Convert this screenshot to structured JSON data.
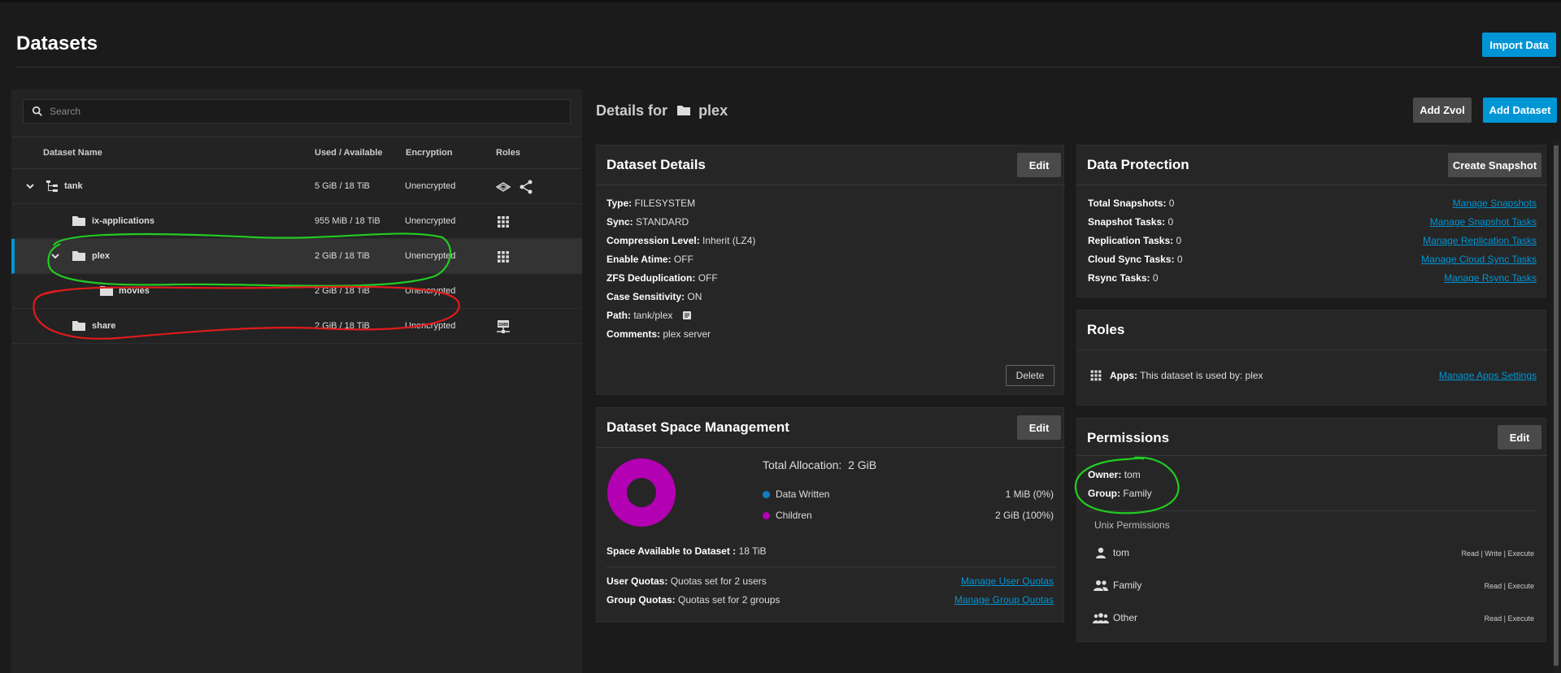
{
  "page": {
    "title": "Datasets",
    "import_label": "Import Data"
  },
  "search": {
    "placeholder": "Search"
  },
  "table": {
    "headers": [
      "Dataset Name",
      "Used / Available",
      "Encryption",
      "Roles"
    ],
    "rows": [
      {
        "name": "tank",
        "used": "5 GiB / 18 TiB",
        "encryption": "Unencrypted",
        "roles": [
          "share-icon",
          "network-share-icon"
        ]
      },
      {
        "name": "ix-applications",
        "used": "955 MiB / 18 TiB",
        "encryption": "Unencrypted",
        "roles": [
          "apps-grid-icon"
        ]
      },
      {
        "name": "plex",
        "used": "2 GiB / 18 TiB",
        "encryption": "Unencrypted",
        "roles": [
          "apps-grid-icon"
        ]
      },
      {
        "name": "movies",
        "used": "2 GiB / 18 TiB",
        "encryption": "Unencrypted",
        "roles": []
      },
      {
        "name": "share",
        "used": "2 GiB / 18 TiB",
        "encryption": "Unencrypted",
        "roles": [
          "smb-share-icon"
        ]
      }
    ],
    "selected": "plex"
  },
  "details": {
    "prefix": "Details for",
    "name": "plex",
    "add_zvol": "Add Zvol",
    "add_dataset": "Add Dataset"
  },
  "dataset_details": {
    "title": "Dataset Details",
    "edit": "Edit",
    "delete": "Delete",
    "items": [
      {
        "k": "Type:",
        "v": "FILESYSTEM"
      },
      {
        "k": "Sync:",
        "v": "STANDARD"
      },
      {
        "k": "Compression Level:",
        "v": "Inherit (LZ4)"
      },
      {
        "k": "Enable Atime:",
        "v": "OFF"
      },
      {
        "k": "ZFS Deduplication:",
        "v": "OFF"
      },
      {
        "k": "Case Sensitivity:",
        "v": "ON"
      },
      {
        "k": "Path:",
        "v": "tank/plex"
      },
      {
        "k": "Comments:",
        "v": "plex server"
      }
    ]
  },
  "space": {
    "title": "Dataset Space Management",
    "edit": "Edit",
    "total_label": "Total Allocation:",
    "total_value": "2 GiB",
    "legend": [
      {
        "name": "Data Written",
        "value": "1 MiB (0%)",
        "color": "#0f7fc0"
      },
      {
        "name": "Children",
        "value": "2 GiB (100%)",
        "color": "#b300b3"
      }
    ],
    "available_label": "Space Available to Dataset :",
    "available_value": "18 TiB",
    "user_quotas_label": "User Quotas:",
    "user_quotas_value": "Quotas set for 2 users",
    "group_quotas_label": "Group Quotas:",
    "group_quotas_value": "Quotas set for 2 groups",
    "manage_user_quotas": "Manage User Quotas",
    "manage_group_quotas": "Manage Group Quotas"
  },
  "protection": {
    "title": "Data Protection",
    "create_snapshot": "Create Snapshot",
    "items": [
      {
        "k": "Total Snapshots:",
        "v": "0",
        "link": "Manage Snapshots"
      },
      {
        "k": "Snapshot Tasks:",
        "v": "0",
        "link": "Manage Snapshot Tasks"
      },
      {
        "k": "Replication Tasks:",
        "v": "0",
        "link": "Manage Replication Tasks"
      },
      {
        "k": "Cloud Sync Tasks:",
        "v": "0",
        "link": "Manage Cloud Sync Tasks"
      },
      {
        "k": "Rsync Tasks:",
        "v": "0",
        "link": "Manage Rsync Tasks"
      }
    ]
  },
  "roles": {
    "title": "Roles",
    "apps_label": "Apps:",
    "apps_value": "This dataset is used by: plex",
    "manage_apps": "Manage Apps Settings"
  },
  "permissions": {
    "title": "Permissions",
    "edit": "Edit",
    "owner_label": "Owner:",
    "owner_value": "tom",
    "group_label": "Group:",
    "group_value": "Family",
    "unix_label": "Unix Permissions",
    "entries": [
      {
        "name": "tom",
        "perm": "Read | Write | Execute",
        "icon": "user-icon"
      },
      {
        "name": "Family",
        "perm": "Read | Execute",
        "icon": "group-icon"
      },
      {
        "name": "Other",
        "perm": "Read | Execute",
        "icon": "others-icon"
      }
    ]
  },
  "colors": {
    "accent": "#0095d5",
    "children": "#b300b3",
    "annotation_green": "#22cc22",
    "annotation_red": "#e01b1b"
  }
}
